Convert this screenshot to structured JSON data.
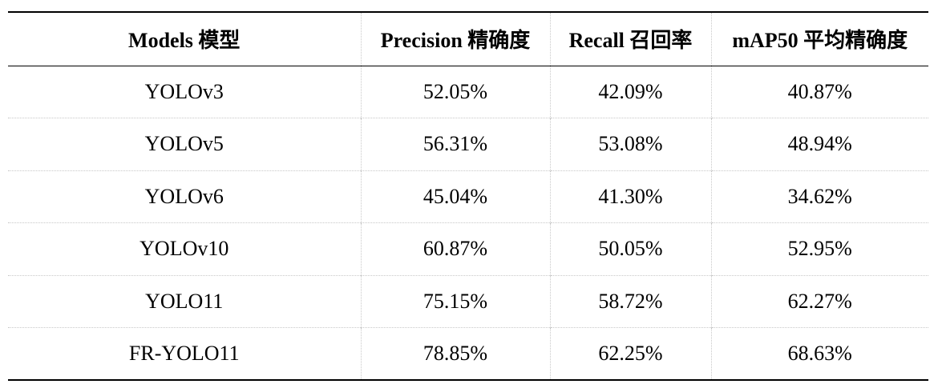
{
  "table": {
    "headers": [
      "Models 模型",
      "Precision 精确度",
      "Recall 召回率",
      "mAP50 平均精确度"
    ],
    "rows": [
      [
        "YOLOv3",
        "52.05%",
        "42.09%",
        "40.87%"
      ],
      [
        "YOLOv5",
        "56.31%",
        "53.08%",
        "48.94%"
      ],
      [
        "YOLOv6",
        "45.04%",
        "41.30%",
        "34.62%"
      ],
      [
        "YOLOv10",
        "60.87%",
        "50.05%",
        "52.95%"
      ],
      [
        "YOLO11",
        "75.15%",
        "58.72%",
        "62.27%"
      ],
      [
        "FR-YOLO11",
        "78.85%",
        "62.25%",
        "68.63%"
      ]
    ]
  }
}
